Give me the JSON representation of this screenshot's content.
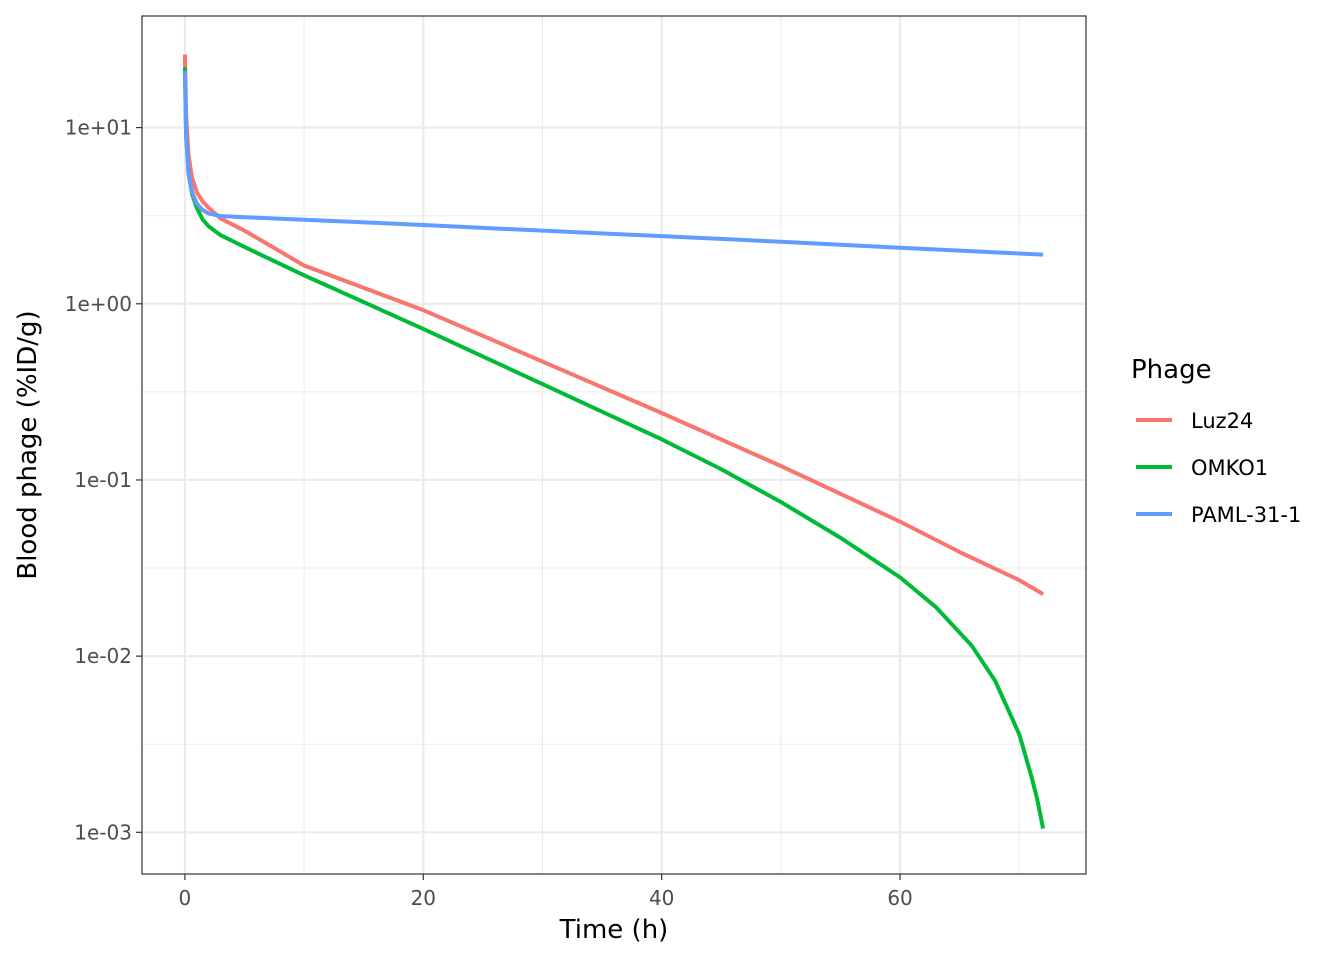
{
  "chart_data": {
    "type": "line",
    "xlabel": "Time (h)",
    "ylabel": "Blood phage (%ID/g)",
    "xlim": [
      -3.6,
      75.6
    ],
    "x_ticks": [
      0,
      20,
      40,
      60
    ],
    "x_tick_labels": [
      "0",
      "20",
      "40",
      "60"
    ],
    "y_scale": "log10",
    "ylim": [
      0.00058,
      43
    ],
    "y_ticks": [
      0.001,
      0.01,
      0.1,
      1,
      10
    ],
    "y_tick_labels": [
      "1e-03",
      "1e-02",
      "1e-01",
      "1e+00",
      "1e+01"
    ],
    "grid": true,
    "legend": {
      "title": "Phage",
      "position": "right"
    },
    "series": [
      {
        "name": "Luz24",
        "color": "#F8766D",
        "x": [
          0,
          0.1,
          0.3,
          0.6,
          1,
          1.5,
          2,
          3,
          5,
          10,
          20,
          30,
          40,
          50,
          60,
          65,
          70,
          72
        ],
        "y": [
          26,
          12,
          7,
          5.2,
          4.3,
          3.8,
          3.5,
          3.05,
          2.6,
          1.65,
          0.92,
          0.47,
          0.24,
          0.12,
          0.058,
          0.039,
          0.027,
          0.0225
        ]
      },
      {
        "name": "OMKO1",
        "color": "#00BA38",
        "x": [
          0,
          0.1,
          0.3,
          0.6,
          1,
          1.5,
          2,
          3,
          5,
          10,
          20,
          30,
          40,
          45,
          50,
          55,
          60,
          63,
          66,
          68,
          70,
          71,
          71.5,
          72
        ],
        "y": [
          22,
          9,
          5.5,
          4.2,
          3.5,
          3.0,
          2.75,
          2.45,
          2.1,
          1.45,
          0.72,
          0.35,
          0.17,
          0.115,
          0.075,
          0.047,
          0.028,
          0.019,
          0.0115,
          0.0072,
          0.0036,
          0.0021,
          0.00155,
          0.00105
        ]
      },
      {
        "name": "PAML-31-1",
        "color": "#619CFF",
        "x": [
          0,
          0.1,
          0.3,
          0.6,
          1,
          1.5,
          2,
          3,
          5,
          10,
          20,
          30,
          40,
          50,
          60,
          72
        ],
        "y": [
          21,
          9,
          5.5,
          4.3,
          3.7,
          3.4,
          3.25,
          3.15,
          3.1,
          3.0,
          2.8,
          2.6,
          2.42,
          2.25,
          2.08,
          1.9
        ]
      }
    ]
  }
}
